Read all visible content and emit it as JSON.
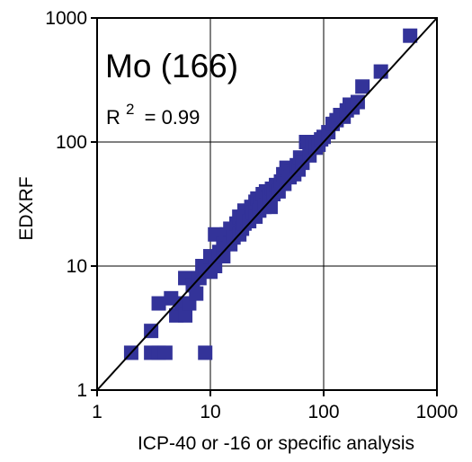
{
  "chart_data": {
    "type": "scatter",
    "title": "Mo (166)",
    "annotation": {
      "r_symbol": "R",
      "r_superscript": "2",
      "r_value_text": "= 0.99"
    },
    "xlabel": "ICP-40 or -16 or specific analysis",
    "ylabel": "EDXRF",
    "x_scale": "log",
    "y_scale": "log",
    "xlim": [
      1,
      1000
    ],
    "ylim": [
      1,
      1000
    ],
    "x_ticks": [
      1,
      10,
      100,
      1000
    ],
    "y_ticks": [
      1,
      10,
      100,
      1000
    ],
    "x_tick_labels": [
      "1",
      "10",
      "100",
      "1000"
    ],
    "y_tick_labels": [
      "1",
      "10",
      "100",
      "1000"
    ],
    "grid": true,
    "reference_line": {
      "from": [
        1,
        1
      ],
      "to": [
        1000,
        1000
      ]
    },
    "colors": {
      "marker": "#333399",
      "line": "#000000",
      "grid": "#000000"
    },
    "points": [
      [
        2,
        2
      ],
      [
        3,
        2
      ],
      [
        3,
        3
      ],
      [
        3.5,
        2
      ],
      [
        4,
        2
      ],
      [
        9,
        2
      ],
      [
        3.5,
        5
      ],
      [
        4.5,
        5.5
      ],
      [
        5,
        4
      ],
      [
        5.5,
        5
      ],
      [
        6,
        4
      ],
      [
        6,
        8
      ],
      [
        6.5,
        5
      ],
      [
        7,
        7
      ],
      [
        7.5,
        6
      ],
      [
        8,
        8
      ],
      [
        8.5,
        10
      ],
      [
        9,
        10
      ],
      [
        10,
        9
      ],
      [
        10,
        12
      ],
      [
        11,
        10
      ],
      [
        11,
        18
      ],
      [
        12,
        13
      ],
      [
        13,
        12
      ],
      [
        13,
        15
      ],
      [
        14,
        18
      ],
      [
        15,
        15
      ],
      [
        15,
        20
      ],
      [
        16,
        17
      ],
      [
        17,
        22
      ],
      [
        18,
        18
      ],
      [
        18,
        25
      ],
      [
        19,
        20
      ],
      [
        20,
        22
      ],
      [
        20,
        28
      ],
      [
        21,
        25
      ],
      [
        22,
        23
      ],
      [
        23,
        30
      ],
      [
        24,
        27
      ],
      [
        25,
        25
      ],
      [
        25,
        33
      ],
      [
        26,
        35
      ],
      [
        27,
        28
      ],
      [
        28,
        32
      ],
      [
        29,
        38
      ],
      [
        30,
        30
      ],
      [
        31,
        40
      ],
      [
        32,
        35
      ],
      [
        33,
        37
      ],
      [
        34,
        30
      ],
      [
        35,
        42
      ],
      [
        36,
        38
      ],
      [
        38,
        45
      ],
      [
        40,
        40
      ],
      [
        42,
        48
      ],
      [
        44,
        55
      ],
      [
        45,
        46
      ],
      [
        47,
        62
      ],
      [
        50,
        52
      ],
      [
        52,
        58
      ],
      [
        55,
        55
      ],
      [
        58,
        65
      ],
      [
        60,
        60
      ],
      [
        62,
        75
      ],
      [
        65,
        68
      ],
      [
        70,
        100
      ],
      [
        75,
        78
      ],
      [
        80,
        100
      ],
      [
        85,
        90
      ],
      [
        90,
        95
      ],
      [
        95,
        105
      ],
      [
        100,
        110
      ],
      [
        110,
        120
      ],
      [
        120,
        140
      ],
      [
        130,
        150
      ],
      [
        140,
        165
      ],
      [
        150,
        160
      ],
      [
        160,
        180
      ],
      [
        170,
        200
      ],
      [
        180,
        190
      ],
      [
        200,
        210
      ],
      [
        220,
        280
      ],
      [
        320,
        370
      ],
      [
        580,
        720
      ]
    ]
  }
}
